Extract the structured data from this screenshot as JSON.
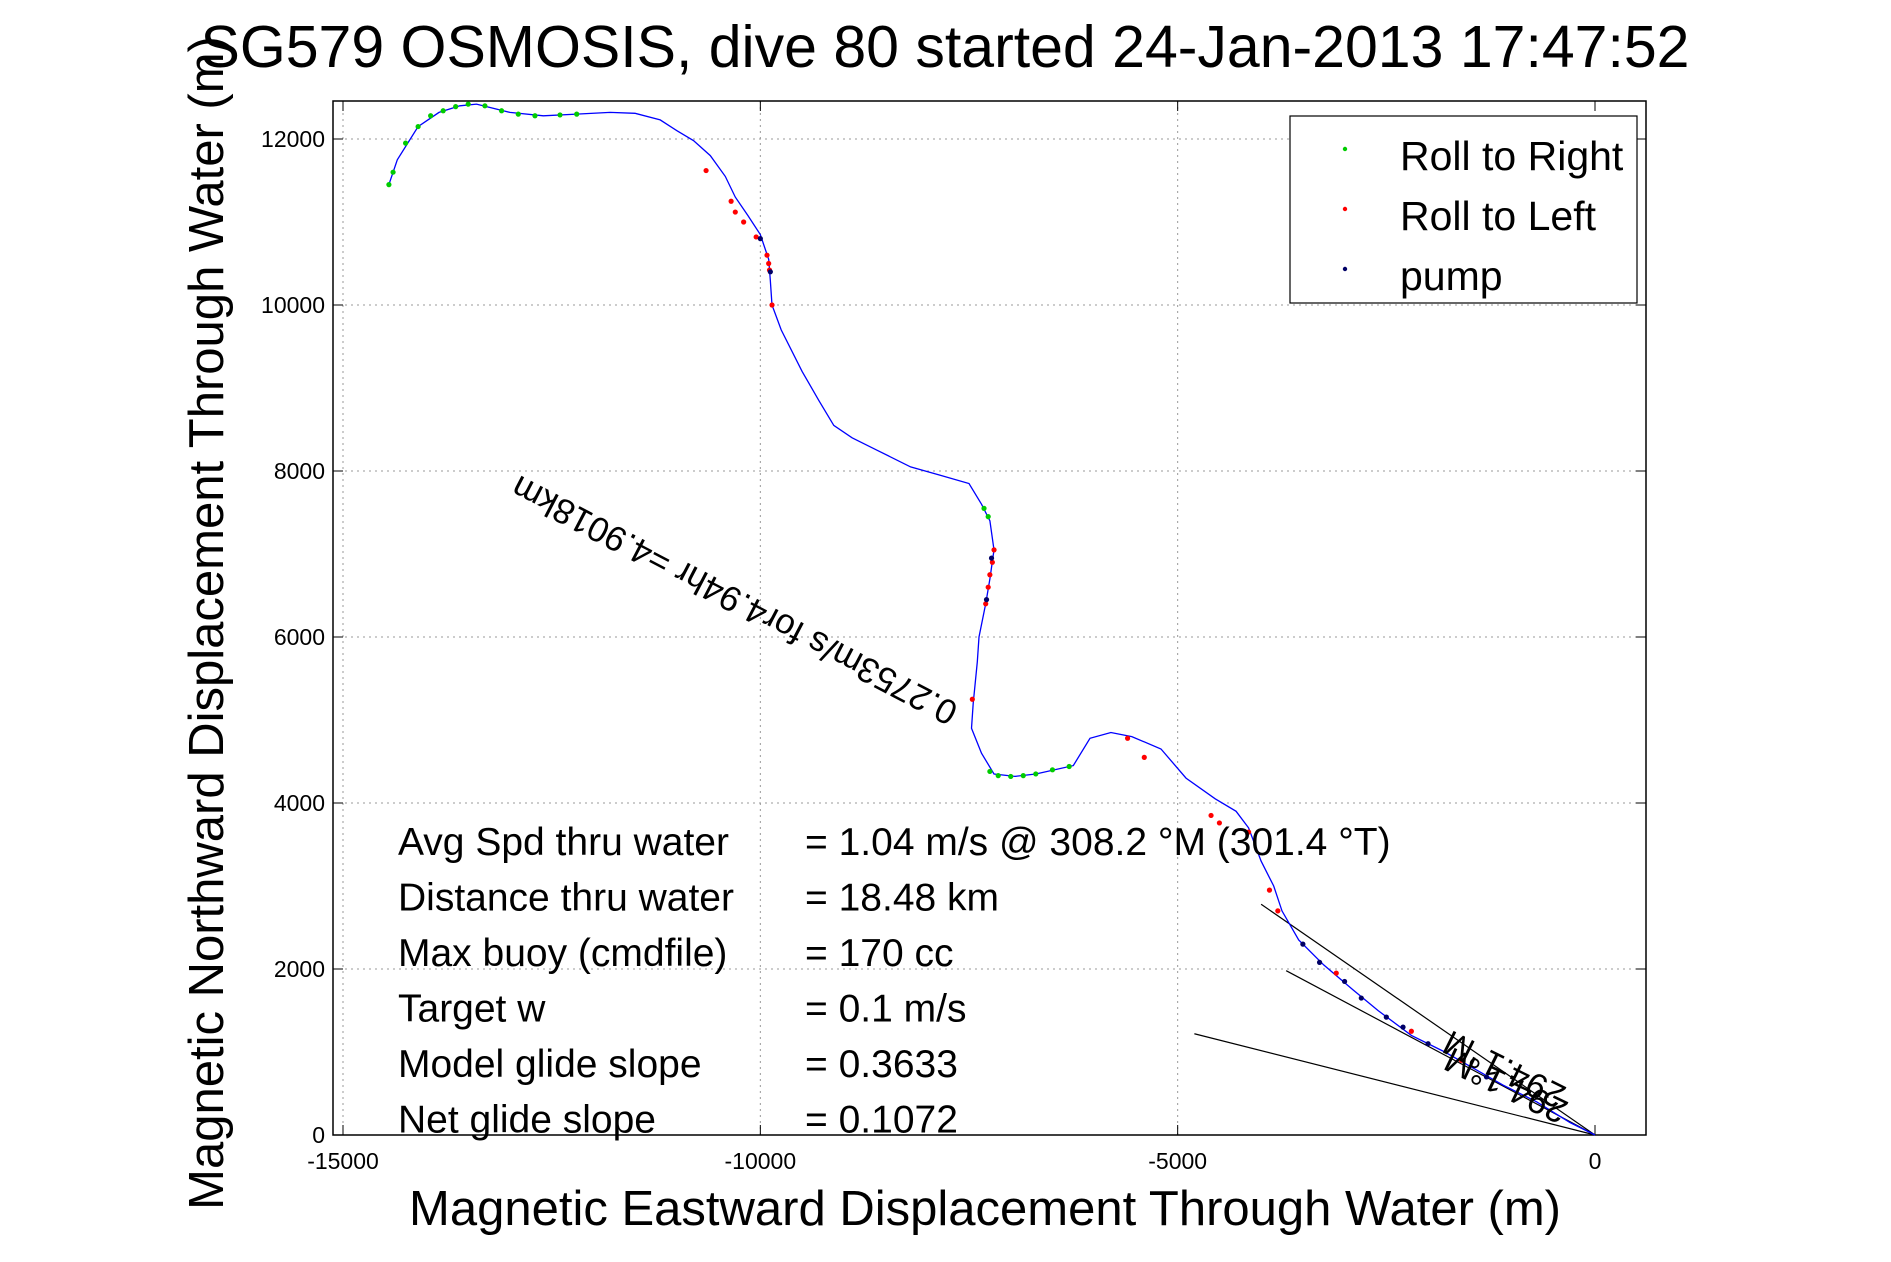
{
  "chart_data": {
    "type": "line",
    "title": "SG579 OSMOSIS, dive 80 started 24-Jan-2013 17:47:52",
    "xlabel": "Magnetic Eastward Displacement Through Water (m)",
    "ylabel": "Magnetic Northward Displacement Through Water (m)",
    "xlim": [
      -15000,
      600
    ],
    "ylim": [
      0,
      12500
    ],
    "xticks": [
      -15000,
      -10000,
      -5000,
      0
    ],
    "xtick_labels": [
      "-15000",
      "-10000",
      "-5000",
      "0"
    ],
    "yticks": [
      0,
      2000,
      4000,
      6000,
      8000,
      10000,
      12000
    ],
    "ytick_labels": [
      "0",
      "2000",
      "4000",
      "6000",
      "8000",
      "10000",
      "12000"
    ],
    "grid": true,
    "legend_position": "top-right",
    "track_color": "#0000ff",
    "track": [
      [
        -14450,
        11450
      ],
      [
        -14350,
        11750
      ],
      [
        -14100,
        12150
      ],
      [
        -13850,
        12320
      ],
      [
        -13600,
        12400
      ],
      [
        -13400,
        12420
      ],
      [
        -13000,
        12320
      ],
      [
        -12600,
        12280
      ],
      [
        -12200,
        12300
      ],
      [
        -11800,
        12320
      ],
      [
        -11500,
        12310
      ],
      [
        -11200,
        12230
      ],
      [
        -11000,
        12100
      ],
      [
        -10800,
        11980
      ],
      [
        -10600,
        11800
      ],
      [
        -10420,
        11550
      ],
      [
        -10300,
        11300
      ],
      [
        -10150,
        11080
      ],
      [
        -10000,
        10850
      ],
      [
        -9900,
        10550
      ],
      [
        -9880,
        10300
      ],
      [
        -9860,
        10000
      ],
      [
        -9750,
        9700
      ],
      [
        -9500,
        9200
      ],
      [
        -9300,
        8850
      ],
      [
        -9120,
        8550
      ],
      [
        -8900,
        8400
      ],
      [
        -8600,
        8250
      ],
      [
        -8200,
        8050
      ],
      [
        -7850,
        7950
      ],
      [
        -7500,
        7850
      ],
      [
        -7350,
        7600
      ],
      [
        -7250,
        7400
      ],
      [
        -7200,
        7050
      ],
      [
        -7250,
        6700
      ],
      [
        -7300,
        6400
      ],
      [
        -7380,
        6000
      ],
      [
        -7400,
        5700
      ],
      [
        -7450,
        5200
      ],
      [
        -7470,
        4900
      ],
      [
        -7350,
        4600
      ],
      [
        -7200,
        4350
      ],
      [
        -6950,
        4320
      ],
      [
        -6700,
        4350
      ],
      [
        -6250,
        4450
      ],
      [
        -6050,
        4780
      ],
      [
        -5800,
        4850
      ],
      [
        -5550,
        4800
      ],
      [
        -5200,
        4650
      ],
      [
        -4900,
        4300
      ],
      [
        -4550,
        4050
      ],
      [
        -4300,
        3900
      ],
      [
        -4150,
        3700
      ],
      [
        -4000,
        3300
      ],
      [
        -3850,
        3000
      ],
      [
        -3750,
        2700
      ],
      [
        -3550,
        2350
      ],
      [
        -3250,
        2050
      ],
      [
        -2900,
        1750
      ],
      [
        -2600,
        1500
      ],
      [
        -2200,
        1200
      ],
      [
        -1800,
        1000
      ],
      [
        -1450,
        800
      ],
      [
        -1100,
        600
      ],
      [
        -700,
        400
      ],
      [
        -300,
        150
      ],
      [
        0,
        0
      ]
    ],
    "current_lines": [
      [
        [
          -4000,
          2780
        ],
        [
          0,
          0
        ]
      ],
      [
        [
          -4800,
          1220
        ],
        [
          0,
          0
        ]
      ],
      [
        [
          -3700,
          1980
        ],
        [
          0,
          0
        ]
      ]
    ],
    "current_line_color": "#000000",
    "current_label": "0.2753m/s for4.94hr =4.9018km",
    "current_label_2": "294.1°M",
    "current_label_3": "294.1°M",
    "series": [
      {
        "name": "Roll to Right",
        "color": "#00cc00",
        "points": [
          [
            -14450,
            11450
          ],
          [
            -14400,
            11600
          ],
          [
            -14250,
            11950
          ],
          [
            -14100,
            12150
          ],
          [
            -13950,
            12280
          ],
          [
            -13800,
            12340
          ],
          [
            -13650,
            12390
          ],
          [
            -13500,
            12420
          ],
          [
            -13300,
            12400
          ],
          [
            -13100,
            12340
          ],
          [
            -12900,
            12300
          ],
          [
            -12700,
            12280
          ],
          [
            -12400,
            12290
          ],
          [
            -12200,
            12300
          ],
          [
            -7320,
            7550
          ],
          [
            -7270,
            7450
          ],
          [
            -7250,
            4380
          ],
          [
            -7150,
            4330
          ],
          [
            -7000,
            4320
          ],
          [
            -6850,
            4330
          ],
          [
            -6700,
            4350
          ],
          [
            -6500,
            4400
          ],
          [
            -6300,
            4440
          ]
        ]
      },
      {
        "name": "Roll to Left",
        "color": "#ff0000",
        "points": [
          [
            -10650,
            11620
          ],
          [
            -10350,
            11250
          ],
          [
            -10300,
            11120
          ],
          [
            -10200,
            11000
          ],
          [
            -10050,
            10820
          ],
          [
            -9920,
            10600
          ],
          [
            -9900,
            10500
          ],
          [
            -9890,
            10420
          ],
          [
            -9860,
            10000
          ],
          [
            -7200,
            7050
          ],
          [
            -7220,
            6900
          ],
          [
            -7250,
            6750
          ],
          [
            -7270,
            6600
          ],
          [
            -7300,
            6400
          ],
          [
            -7460,
            5250
          ],
          [
            -5600,
            4780
          ],
          [
            -5400,
            4550
          ],
          [
            -4600,
            3850
          ],
          [
            -4500,
            3760
          ],
          [
            -4150,
            3650
          ],
          [
            -3900,
            2950
          ],
          [
            -3800,
            2700
          ],
          [
            -3100,
            1950
          ],
          [
            -2200,
            1250
          ],
          [
            -1600,
            900
          ]
        ]
      },
      {
        "name": "pump",
        "color": "#000066",
        "points": [
          [
            -10000,
            10800
          ],
          [
            -9880,
            10400
          ],
          [
            -7230,
            6950
          ],
          [
            -7290,
            6450
          ],
          [
            -3500,
            2300
          ],
          [
            -3300,
            2080
          ],
          [
            -3000,
            1850
          ],
          [
            -2800,
            1650
          ],
          [
            -2500,
            1420
          ],
          [
            -2300,
            1300
          ],
          [
            -2000,
            1100
          ],
          [
            -1300,
            700
          ]
        ]
      }
    ],
    "stats": [
      {
        "label": "Avg Spd thru water",
        "value": "=  1.04 m/s @ 308.2 °M (301.4 °T)"
      },
      {
        "label": "Distance thru water",
        "value": "= 18.48 km"
      },
      {
        "label": "Max buoy (cmdfile)",
        "value": "= 170 cc"
      },
      {
        "label": "Target w",
        "value": "= 0.1 m/s"
      },
      {
        "label": "Model glide slope",
        "value": "= 0.3633"
      },
      {
        "label": "Net glide slope",
        "value": "= 0.1072"
      }
    ]
  }
}
